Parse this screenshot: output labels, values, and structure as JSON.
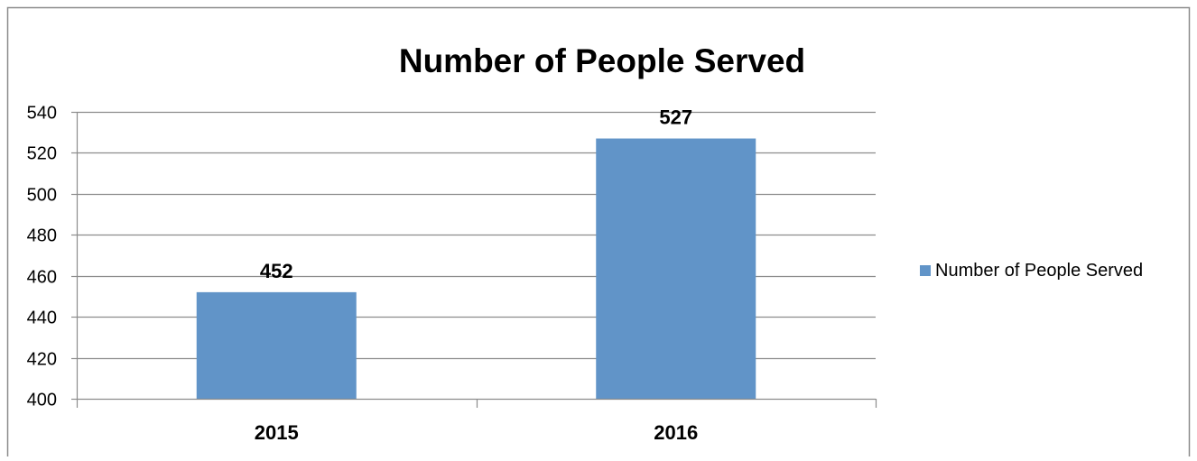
{
  "chart_data": {
    "type": "bar",
    "title": "Number of People Served",
    "categories": [
      "2015",
      "2016"
    ],
    "series": [
      {
        "name": "Number of People Served",
        "values": [
          452,
          527
        ]
      }
    ],
    "xlabel": "",
    "ylabel": "",
    "ylim": [
      400,
      540
    ],
    "yticks": [
      400,
      420,
      440,
      460,
      480,
      500,
      520,
      540
    ],
    "data_labels": [
      "452",
      "527"
    ],
    "grid": "horizontal",
    "legend_position": "right",
    "colors": {
      "bar": "#6194c8",
      "grid": "#8c8c8c",
      "frame": "#8c8c8c",
      "text": "#000000"
    }
  }
}
